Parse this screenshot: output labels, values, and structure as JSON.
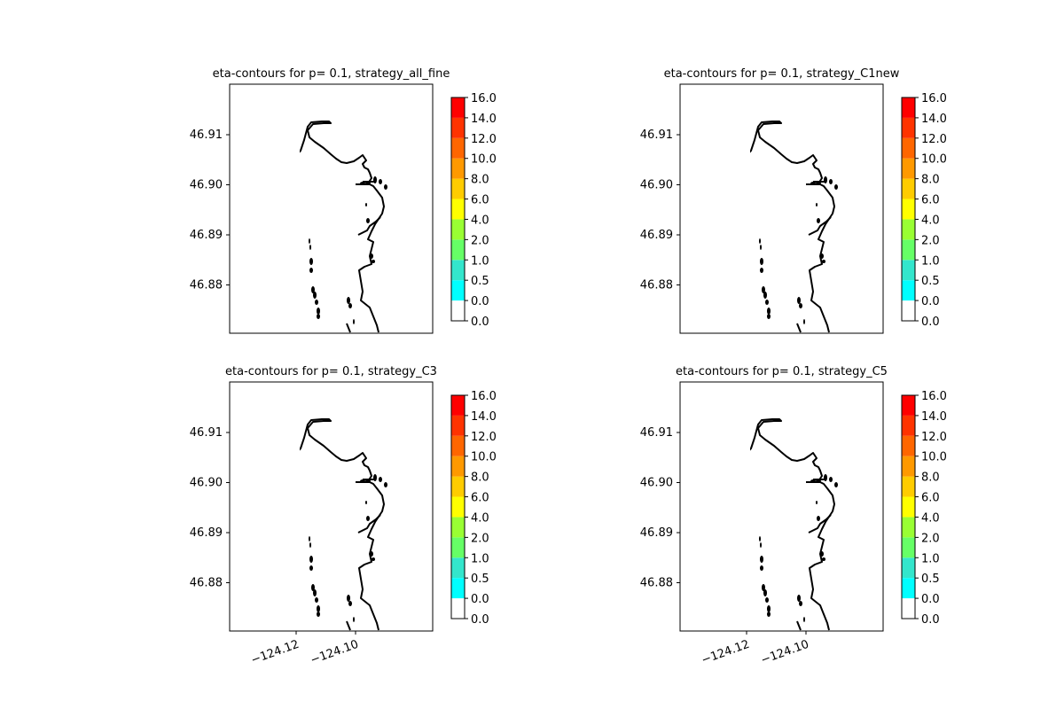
{
  "chart_data": [
    {
      "type": "contour-map",
      "title": "eta-contours for p= 0.1, strategy_all_fine",
      "y_ticks": [
        "46.91",
        "46.90",
        "46.89",
        "46.88"
      ],
      "x_ticks": [],
      "colorbar": {
        "ticks": [
          "0.0",
          "0.0",
          "0.5",
          "1.0",
          "2.0",
          "4.0",
          "6.0",
          "8.0",
          "10.0",
          "12.0",
          "14.0",
          "16.0"
        ]
      }
    },
    {
      "type": "contour-map",
      "title": "eta-contours for p= 0.1, strategy_C1new",
      "y_ticks": [
        "46.91",
        "46.90",
        "46.89",
        "46.88"
      ],
      "x_ticks": [],
      "colorbar": {
        "ticks": [
          "0.0",
          "0.0",
          "0.5",
          "1.0",
          "2.0",
          "4.0",
          "6.0",
          "8.0",
          "10.0",
          "12.0",
          "14.0",
          "16.0"
        ]
      }
    },
    {
      "type": "contour-map",
      "title": "eta-contours for p= 0.1, strategy_C3",
      "y_ticks": [
        "46.91",
        "46.90",
        "46.89",
        "46.88"
      ],
      "x_ticks": [
        "−124.12",
        "−124.10"
      ],
      "colorbar": {
        "ticks": [
          "0.0",
          "0.0",
          "0.5",
          "1.0",
          "2.0",
          "4.0",
          "6.0",
          "8.0",
          "10.0",
          "12.0",
          "14.0",
          "16.0"
        ]
      }
    },
    {
      "type": "contour-map",
      "title": "eta-contours for p= 0.1, strategy_C5",
      "y_ticks": [
        "46.91",
        "46.90",
        "46.89",
        "46.88"
      ],
      "x_ticks": [
        "−124.12",
        "−124.10"
      ],
      "colorbar": {
        "ticks": [
          "0.0",
          "0.0",
          "0.5",
          "1.0",
          "2.0",
          "4.0",
          "6.0",
          "8.0",
          "10.0",
          "12.0",
          "14.0",
          "16.0"
        ]
      }
    }
  ],
  "colors": {
    "colorbar_bands": [
      "#ffffff",
      "#00ffff",
      "#33e6cc",
      "#66ff66",
      "#99ff33",
      "#ffff00",
      "#ffcc00",
      "#ff9900",
      "#ff6600",
      "#ff3300",
      "#ff0000"
    ],
    "coastline": "#000000"
  }
}
